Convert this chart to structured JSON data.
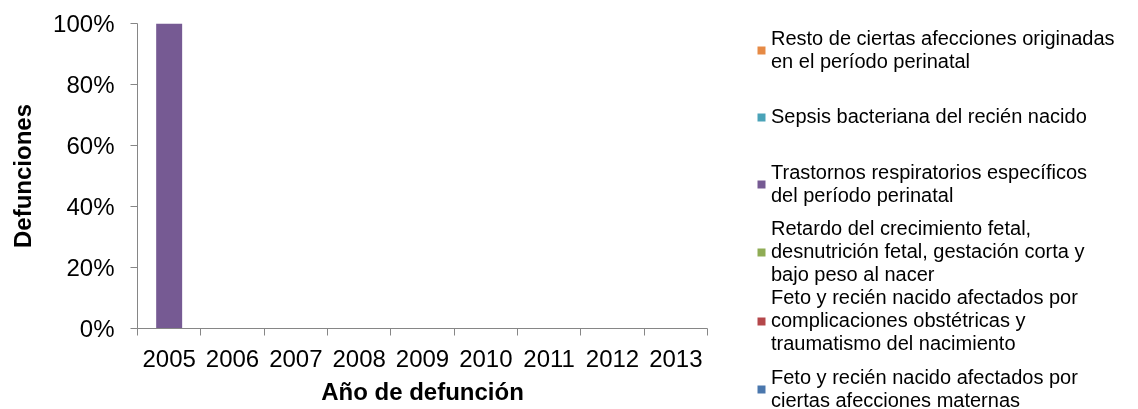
{
  "chart_data": {
    "type": "bar",
    "stacked": true,
    "xlabel": "Año de defunción",
    "ylabel": "Defunciones",
    "categories": [
      "2005",
      "2006",
      "2007",
      "2008",
      "2009",
      "2010",
      "2011",
      "2012",
      "2013"
    ],
    "ylim": [
      0,
      100
    ],
    "yticks": [
      {
        "value": 0,
        "label": "0%"
      },
      {
        "value": 20,
        "label": "20%"
      },
      {
        "value": 40,
        "label": "40%"
      },
      {
        "value": 60,
        "label": "60%"
      },
      {
        "value": 80,
        "label": "80%"
      },
      {
        "value": 100,
        "label": "100%"
      }
    ],
    "legend": "right",
    "series": [
      {
        "name": "Feto y recién nacido afectados por ciertas afecciones maternas",
        "color": "#4a77ad",
        "values": [
          null,
          null,
          null,
          null,
          null,
          null,
          null,
          null,
          null
        ]
      },
      {
        "name": "Feto y recién nacido afectados por complicaciones obstétricas y traumatismo del nacimiento",
        "color": "#b4474a",
        "values": [
          null,
          null,
          null,
          null,
          null,
          null,
          null,
          null,
          null
        ]
      },
      {
        "name": "Retardo del crecimiento fetal, desnutrición fetal, gestación corta y bajo peso al nacer",
        "color": "#8fac55",
        "values": [
          null,
          null,
          null,
          null,
          null,
          null,
          null,
          null,
          null
        ]
      },
      {
        "name": "Trastornos respiratorios específicos del período perinatal",
        "color": "#765a93",
        "values": [
          100,
          null,
          null,
          null,
          null,
          null,
          null,
          null,
          null
        ]
      },
      {
        "name": "Sepsis bacteriana del recién nacido",
        "color": "#4aa3b8",
        "values": [
          null,
          null,
          null,
          null,
          null,
          null,
          null,
          null,
          null
        ]
      },
      {
        "name": "Resto de ciertas afecciones originadas en el período perinatal",
        "color": "#e68a45",
        "values": [
          null,
          null,
          null,
          null,
          null,
          null,
          null,
          null,
          null
        ]
      }
    ]
  }
}
